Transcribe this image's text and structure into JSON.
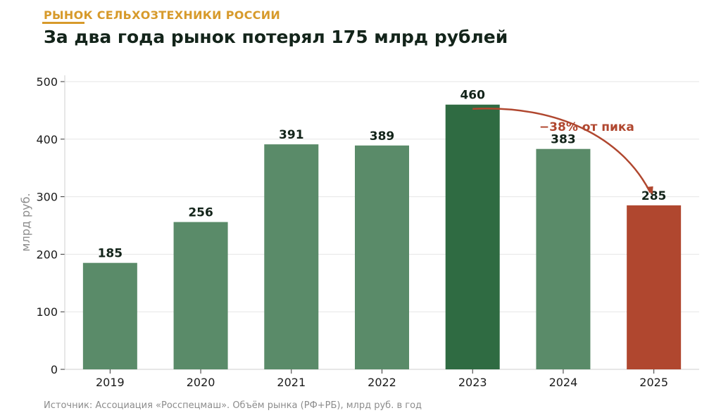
{
  "header": {
    "kicker": "РЫНОК СЕЛЬХОЗТЕХНИКИ РОССИИ",
    "title": "За два года рынок потерял 175 млрд рублей"
  },
  "footer": {
    "source": "Источник: Ассоциация «Росспецмаш». Объём рынка (РФ+РБ), млрд руб. в год"
  },
  "colors": {
    "bar": "#5a8b69",
    "peak": "#2f6b42",
    "latest": "#b0472f",
    "accent": "#d79a2b",
    "annotation": "#b0472f",
    "grid": "#e6e6e6"
  },
  "chart_data": {
    "type": "bar",
    "categories": [
      "2019",
      "2020",
      "2021",
      "2022",
      "2023",
      "2024",
      "2025"
    ],
    "values": [
      185,
      256,
      391,
      389,
      460,
      383,
      285
    ],
    "data_labels": [
      "185",
      "256",
      "391",
      "389",
      "460",
      "383",
      "285"
    ],
    "highlight": {
      "2023": "peak",
      "2025": "latest"
    },
    "ylabel": "млрд руб.",
    "xlabel": "",
    "ylim": [
      0,
      500
    ],
    "yticks": [
      0,
      100,
      200,
      300,
      400,
      500
    ],
    "grid": true,
    "annotation": {
      "text": "−38% от пика",
      "from": "2023",
      "to": "2025"
    }
  }
}
